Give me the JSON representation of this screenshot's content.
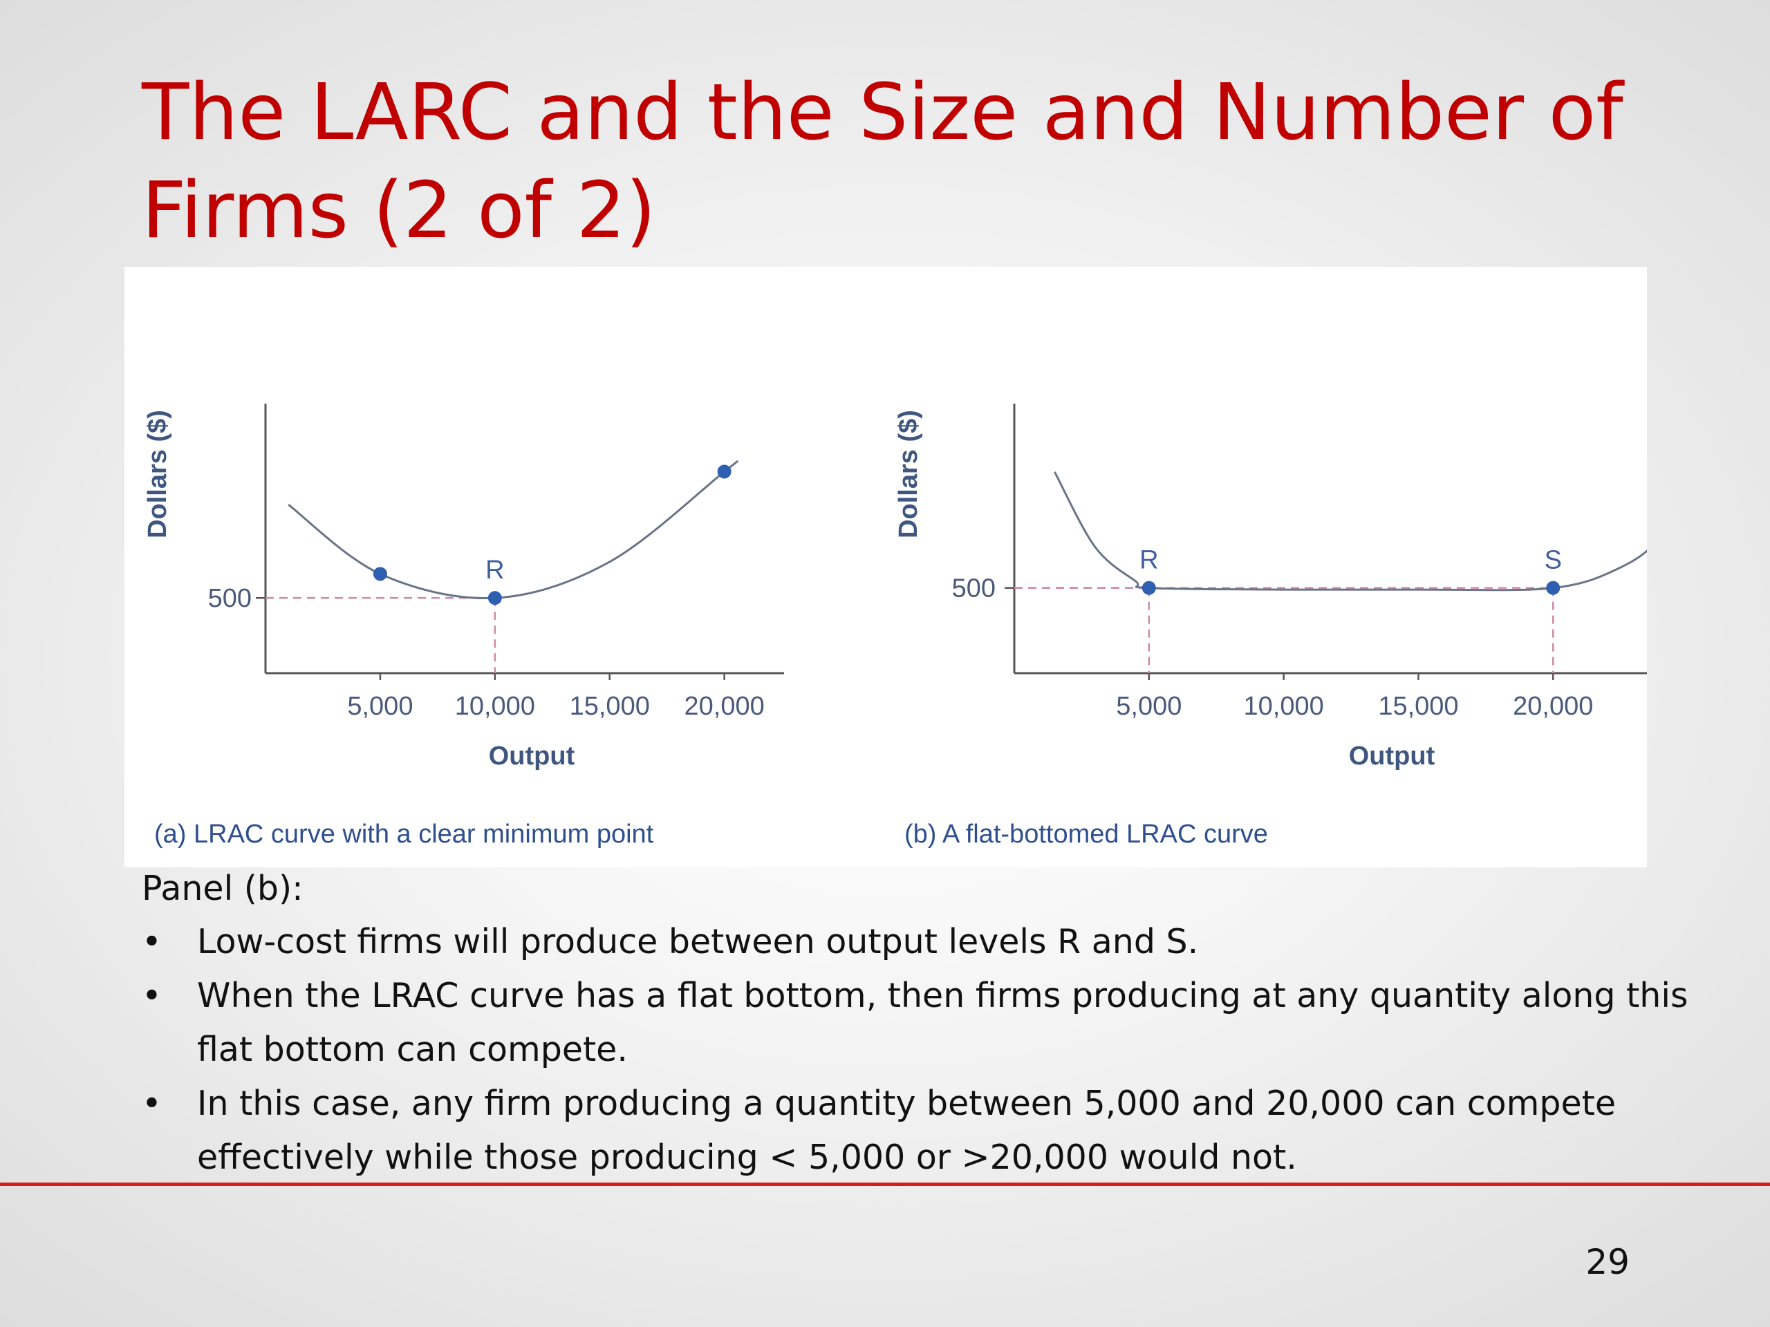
{
  "slide": {
    "title_line1": "The LARC and the Size and Number of",
    "title_line2": "Firms (2 of 2)",
    "panel_label": "Panel (b):",
    "bullets": [
      {
        "line1": "Low-cost firms will produce between output levels R and S."
      },
      {
        "line1": "When the LRAC curve has a flat bottom, then firms producing at any quantity along this",
        "line2": "flat bottom can compete."
      },
      {
        "line1": "In this case, any firm producing a quantity between 5,000 and 20,000 can compete",
        "line2": "effectively while those producing < 5,000 or >20,000 would not."
      }
    ],
    "bullet_symbol": "•",
    "page_number": "29",
    "colors": {
      "title": "#c00000",
      "rule": "#d22020",
      "curve": "#6a7488",
      "point": "#2f5fb0",
      "guide": "#d08aa8"
    }
  },
  "chart_data": [
    {
      "type": "line",
      "caption": "(a) LRAC curve with a clear minimum point",
      "xlabel": "Output",
      "ylabel": "Dollars ($)",
      "xlim": [
        0,
        22000
      ],
      "ylim": [
        250,
        1100
      ],
      "xticks": [
        {
          "value": 5000,
          "label": "5,000"
        },
        {
          "value": 10000,
          "label": "10,000"
        },
        {
          "value": 15000,
          "label": "15,000"
        },
        {
          "value": 20000,
          "label": "20,000"
        }
      ],
      "yticks": [
        {
          "value": 500,
          "label": "500"
        }
      ],
      "series": [
        {
          "x": [
            1000,
            5000,
            10000,
            15000,
            20000,
            20500
          ],
          "y": [
            810,
            580,
            500,
            620,
            920,
            950
          ]
        }
      ],
      "points": [
        {
          "x": 5000,
          "y": 580,
          "label": ""
        },
        {
          "x": 10000,
          "y": 500,
          "label": "R"
        },
        {
          "x": 20000,
          "y": 920,
          "label": ""
        }
      ],
      "guides": [
        {
          "x": 10000,
          "y": 500
        }
      ],
      "grid": false
    },
    {
      "type": "line",
      "caption": "(b) A flat-bottomed LRAC curve",
      "xlabel": "Output",
      "ylabel": "Dollars ($)",
      "xlim": [
        0,
        27000
      ],
      "ylim": [
        250,
        1000
      ],
      "xticks": [
        {
          "value": 5000,
          "label": "5,000"
        },
        {
          "value": 10000,
          "label": "10,000"
        },
        {
          "value": 15000,
          "label": "15,000"
        },
        {
          "value": 20000,
          "label": "20,000"
        }
      ],
      "yticks": [
        {
          "value": 500,
          "label": "500"
        }
      ],
      "series": [
        {
          "x": [
            1500,
            3000,
            4500,
            5000,
            10000,
            15000,
            20000,
            22500,
            24000,
            25500
          ],
          "y": [
            840,
            620,
            520,
            500,
            495,
            495,
            500,
            560,
            650,
            830
          ]
        }
      ],
      "points": [
        {
          "x": 5000,
          "y": 500,
          "label": "R"
        },
        {
          "x": 20000,
          "y": 500,
          "label": "S"
        }
      ],
      "guides": [
        {
          "x": 5000,
          "y": 500
        },
        {
          "x": 20000,
          "y": 500
        }
      ],
      "grid": false
    }
  ]
}
